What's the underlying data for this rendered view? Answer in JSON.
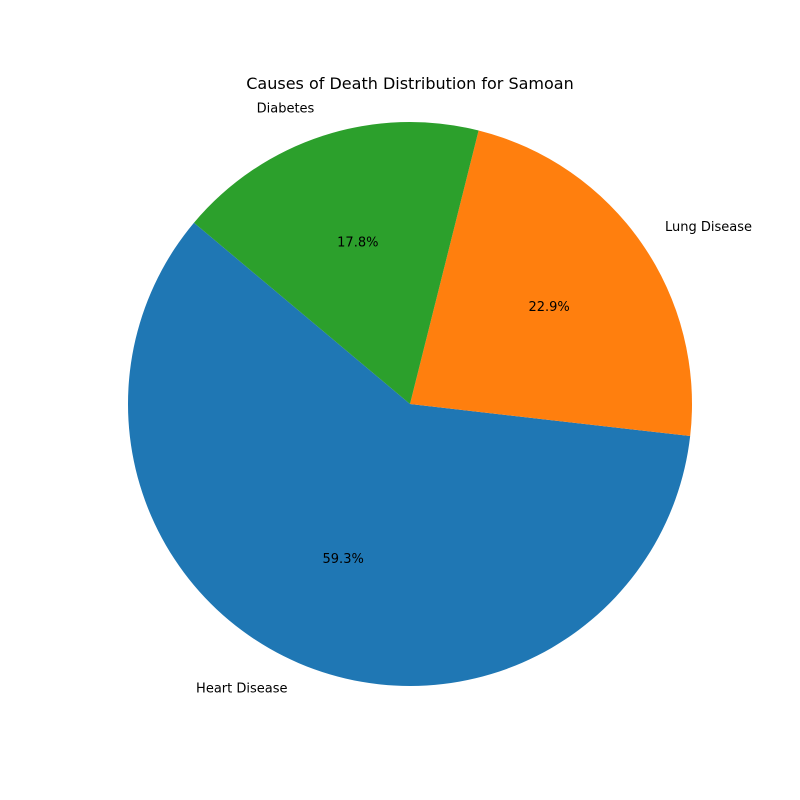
{
  "chart_data": {
    "type": "pie",
    "title": "Causes of Death Distribution for Samoan",
    "slices": [
      {
        "label": "Heart Disease",
        "value": 59.3,
        "value_label": "59.3%",
        "color": "#1f77b4"
      },
      {
        "label": "Lung Disease",
        "value": 22.9,
        "value_label": "22.9%",
        "color": "#ff7f0e"
      },
      {
        "label": "Diabetes",
        "value": 17.8,
        "value_label": "17.8%",
        "color": "#2ca02c"
      }
    ],
    "start_angle_deg": 140,
    "direction": "counterclockwise",
    "legend": "none"
  }
}
